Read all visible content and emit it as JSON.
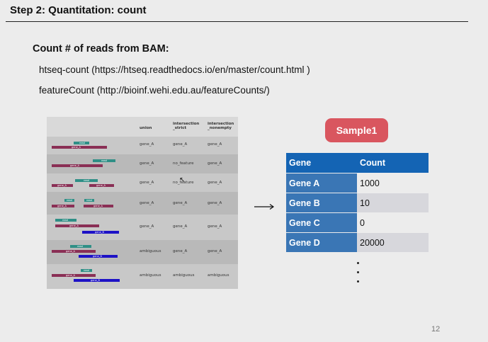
{
  "slide": {
    "title": "Step 2: Quantitation: count",
    "heading": "Count # of reads from BAM:",
    "tools": [
      "htseq-count (https://htseq.readthedocs.io/en/master/count.html )",
      "featureCount (http://bioinf.wehi.edu.au/featureCounts/)"
    ],
    "page_number": "12"
  },
  "mode_table": {
    "columns": [
      "union",
      "intersection\n_strict",
      "intersection\n_nonempty"
    ],
    "rows": [
      [
        "gene_A",
        "gene_A",
        "gene_A"
      ],
      [
        "gene_A",
        "no_feature",
        "gene_A"
      ],
      [
        "gene_A",
        "no_feature",
        "gene_A"
      ],
      [
        "gene_A",
        "gene_A",
        "gene_A"
      ],
      [
        "gene_A",
        "gene_A",
        "gene_A"
      ],
      [
        "ambiguous",
        "gene_A",
        "gene_A"
      ],
      [
        "ambiguous",
        "ambiguous",
        "ambiguous"
      ]
    ],
    "bar_labels": {
      "read": "read",
      "gene_A": "gene_A",
      "gene_B": "gene_B"
    }
  },
  "sample": {
    "label": "Sample1",
    "color": "#d9565f"
  },
  "count_table": {
    "headers": [
      "Gene",
      "Count"
    ],
    "rows": [
      {
        "gene": "Gene A",
        "count": "1000"
      },
      {
        "gene": "Gene B",
        "count": "10"
      },
      {
        "gene": "Gene C",
        "count": "0"
      },
      {
        "gene": "Gene D",
        "count": "20000"
      }
    ],
    "header_color": "#1464b4",
    "gene_color": "#3a76b5"
  },
  "icons": {
    "arrow": "right-arrow-icon",
    "cursor": "mouse-pointer-icon"
  }
}
